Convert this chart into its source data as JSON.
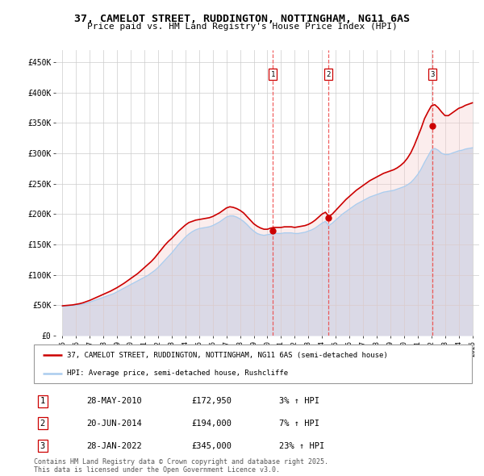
{
  "title": "37, CAMELOT STREET, RUDDINGTON, NOTTINGHAM, NG11 6AS",
  "subtitle": "Price paid vs. HM Land Registry's House Price Index (HPI)",
  "ylabel_ticks": [
    "£0",
    "£50K",
    "£100K",
    "£150K",
    "£200K",
    "£250K",
    "£300K",
    "£350K",
    "£400K",
    "£450K"
  ],
  "ytick_values": [
    0,
    50000,
    100000,
    150000,
    200000,
    250000,
    300000,
    350000,
    400000,
    450000
  ],
  "ylim": [
    0,
    470000
  ],
  "xlim_start": 1994.5,
  "xlim_end": 2025.5,
  "xticks": [
    1995,
    1996,
    1997,
    1998,
    1999,
    2000,
    2001,
    2002,
    2003,
    2004,
    2005,
    2006,
    2007,
    2008,
    2009,
    2010,
    2011,
    2012,
    2013,
    2014,
    2015,
    2016,
    2017,
    2018,
    2019,
    2020,
    2021,
    2022,
    2023,
    2024,
    2025
  ],
  "sale_dates": [
    2010.41,
    2014.47,
    2022.08
  ],
  "sale_prices": [
    172950,
    194000,
    345000
  ],
  "sale_labels": [
    "1",
    "2",
    "3"
  ],
  "legend_label_red": "37, CAMELOT STREET, RUDDINGTON, NOTTINGHAM, NG11 6AS (semi-detached house)",
  "legend_label_blue": "HPI: Average price, semi-detached house, Rushcliffe",
  "table_data": [
    [
      "1",
      "28-MAY-2010",
      "£172,950",
      "3% ↑ HPI"
    ],
    [
      "2",
      "20-JUN-2014",
      "£194,000",
      "7% ↑ HPI"
    ],
    [
      "3",
      "28-JAN-2022",
      "£345,000",
      "23% ↑ HPI"
    ]
  ],
  "footnote": "Contains HM Land Registry data © Crown copyright and database right 2025.\nThis data is licensed under the Open Government Licence v3.0.",
  "red_color": "#cc0000",
  "blue_color": "#aaccee",
  "blue_fill_color": "#cce0f5",
  "red_fill_color": "#f5cccc",
  "marker_color": "#cc0000",
  "dashed_color": "#ee4444",
  "hpi_data_x": [
    1995.0,
    1995.25,
    1995.5,
    1995.75,
    1996.0,
    1996.25,
    1996.5,
    1996.75,
    1997.0,
    1997.25,
    1997.5,
    1997.75,
    1998.0,
    1998.25,
    1998.5,
    1998.75,
    1999.0,
    1999.25,
    1999.5,
    1999.75,
    2000.0,
    2000.25,
    2000.5,
    2000.75,
    2001.0,
    2001.25,
    2001.5,
    2001.75,
    2002.0,
    2002.25,
    2002.5,
    2002.75,
    2003.0,
    2003.25,
    2003.5,
    2003.75,
    2004.0,
    2004.25,
    2004.5,
    2004.75,
    2005.0,
    2005.25,
    2005.5,
    2005.75,
    2006.0,
    2006.25,
    2006.5,
    2006.75,
    2007.0,
    2007.25,
    2007.5,
    2007.75,
    2008.0,
    2008.25,
    2008.5,
    2008.75,
    2009.0,
    2009.25,
    2009.5,
    2009.75,
    2010.0,
    2010.25,
    2010.5,
    2010.75,
    2011.0,
    2011.25,
    2011.5,
    2011.75,
    2012.0,
    2012.25,
    2012.5,
    2012.75,
    2013.0,
    2013.25,
    2013.5,
    2013.75,
    2014.0,
    2014.25,
    2014.5,
    2014.75,
    2015.0,
    2015.25,
    2015.5,
    2015.75,
    2016.0,
    2016.25,
    2016.5,
    2016.75,
    2017.0,
    2017.25,
    2017.5,
    2017.75,
    2018.0,
    2018.25,
    2018.5,
    2018.75,
    2019.0,
    2019.25,
    2019.5,
    2019.75,
    2020.0,
    2020.25,
    2020.5,
    2020.75,
    2021.0,
    2021.25,
    2021.5,
    2021.75,
    2022.0,
    2022.25,
    2022.5,
    2022.75,
    2023.0,
    2023.25,
    2023.5,
    2023.75,
    2024.0,
    2024.25,
    2024.5,
    2024.75,
    2025.0
  ],
  "hpi_data_y": [
    48000,
    48500,
    49000,
    49500,
    50000,
    51000,
    52000,
    53000,
    55000,
    57000,
    59000,
    61000,
    63000,
    65000,
    67000,
    69000,
    72000,
    75000,
    78000,
    81000,
    84000,
    87000,
    90000,
    93000,
    96000,
    99000,
    103000,
    107000,
    112000,
    118000,
    124000,
    130000,
    136000,
    143000,
    150000,
    156000,
    162000,
    167000,
    171000,
    174000,
    176000,
    177000,
    178000,
    179000,
    181000,
    184000,
    187000,
    191000,
    195000,
    197000,
    197000,
    195000,
    192000,
    188000,
    183000,
    177000,
    172000,
    168000,
    166000,
    165000,
    166000,
    167000,
    168000,
    168000,
    168000,
    169000,
    169000,
    169000,
    168000,
    168000,
    169000,
    170000,
    172000,
    174000,
    177000,
    181000,
    185000,
    188000,
    181000,
    185000,
    190000,
    195000,
    200000,
    204000,
    208000,
    212000,
    216000,
    219000,
    222000,
    225000,
    228000,
    230000,
    232000,
    234000,
    236000,
    237000,
    238000,
    239000,
    241000,
    243000,
    245000,
    248000,
    252000,
    258000,
    265000,
    274000,
    285000,
    295000,
    305000,
    308000,
    305000,
    300000,
    298000,
    298000,
    300000,
    302000,
    304000,
    305000,
    307000,
    308000,
    309000
  ],
  "property_data_x": [
    1995.0,
    1995.25,
    1995.5,
    1995.75,
    1996.0,
    1996.25,
    1996.5,
    1996.75,
    1997.0,
    1997.25,
    1997.5,
    1997.75,
    1998.0,
    1998.25,
    1998.5,
    1998.75,
    1999.0,
    1999.25,
    1999.5,
    1999.75,
    2000.0,
    2000.25,
    2000.5,
    2000.75,
    2001.0,
    2001.25,
    2001.5,
    2001.75,
    2002.0,
    2002.25,
    2002.5,
    2002.75,
    2003.0,
    2003.25,
    2003.5,
    2003.75,
    2004.0,
    2004.25,
    2004.5,
    2004.75,
    2005.0,
    2005.25,
    2005.5,
    2005.75,
    2006.0,
    2006.25,
    2006.5,
    2006.75,
    2007.0,
    2007.25,
    2007.5,
    2007.75,
    2008.0,
    2008.25,
    2008.5,
    2008.75,
    2009.0,
    2009.25,
    2009.5,
    2009.75,
    2010.0,
    2010.25,
    2010.5,
    2010.75,
    2011.0,
    2011.25,
    2011.5,
    2011.75,
    2012.0,
    2012.25,
    2012.5,
    2012.75,
    2013.0,
    2013.25,
    2013.5,
    2013.75,
    2014.0,
    2014.25,
    2014.5,
    2014.75,
    2015.0,
    2015.25,
    2015.5,
    2015.75,
    2016.0,
    2016.25,
    2016.5,
    2016.75,
    2017.0,
    2017.25,
    2017.5,
    2017.75,
    2018.0,
    2018.25,
    2018.5,
    2018.75,
    2019.0,
    2019.25,
    2019.5,
    2019.75,
    2020.0,
    2020.25,
    2020.5,
    2020.75,
    2021.0,
    2021.25,
    2021.5,
    2021.75,
    2022.0,
    2022.25,
    2022.5,
    2022.75,
    2023.0,
    2023.25,
    2023.5,
    2023.75,
    2024.0,
    2024.25,
    2024.5,
    2024.75,
    2025.0
  ],
  "property_data_y": [
    49000,
    49500,
    50000,
    50500,
    51500,
    52500,
    54000,
    56000,
    58000,
    60500,
    63000,
    65500,
    68000,
    70500,
    73000,
    76000,
    79000,
    82500,
    86000,
    90000,
    94000,
    98000,
    102000,
    107000,
    112000,
    117000,
    122000,
    128000,
    135000,
    142000,
    149000,
    155000,
    160000,
    166000,
    172000,
    177000,
    182000,
    186000,
    188000,
    190000,
    191000,
    192000,
    193000,
    194000,
    196000,
    199000,
    202000,
    206000,
    210000,
    212000,
    211000,
    209000,
    206000,
    202000,
    196000,
    190000,
    184000,
    180000,
    177000,
    175000,
    175000,
    177000,
    178000,
    178000,
    178000,
    179000,
    179000,
    179000,
    178000,
    179000,
    180000,
    181000,
    183000,
    186000,
    190000,
    195000,
    200000,
    203000,
    196000,
    200000,
    206000,
    212000,
    218000,
    224000,
    229000,
    234000,
    239000,
    243000,
    247000,
    251000,
    255000,
    258000,
    261000,
    264000,
    267000,
    269000,
    271000,
    273000,
    276000,
    280000,
    285000,
    292000,
    301000,
    313000,
    327000,
    341000,
    357000,
    368000,
    378000,
    380000,
    375000,
    368000,
    362000,
    362000,
    366000,
    370000,
    374000,
    376000,
    379000,
    381000,
    383000
  ]
}
